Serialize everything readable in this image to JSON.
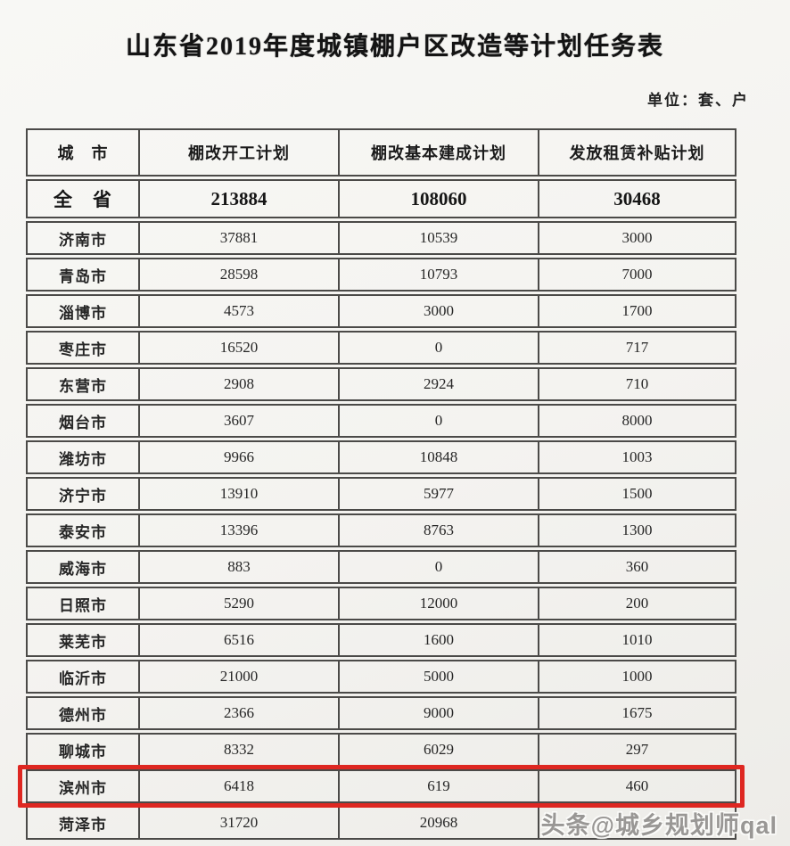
{
  "page": {
    "title": "山东省2019年度城镇棚户区改造等计划任务表",
    "unit_note": "单位：套、户",
    "watermark": "头条@城乡规划师qal",
    "highlight_color": "#de2721",
    "paper_color": "#f4f3f0",
    "ink_color": "#1f1f1f"
  },
  "table": {
    "columns": [
      "城　市",
      "棚改开工计划",
      "棚改基本建成计划",
      "发放租赁补贴计划"
    ],
    "rows": [
      {
        "city": "全　省",
        "start": "213884",
        "built": "108060",
        "subsidy": "30468",
        "is_summary": true,
        "highlighted": false
      },
      {
        "city": "济南市",
        "start": "37881",
        "built": "10539",
        "subsidy": "3000",
        "is_summary": false,
        "highlighted": false
      },
      {
        "city": "青岛市",
        "start": "28598",
        "built": "10793",
        "subsidy": "7000",
        "is_summary": false,
        "highlighted": false
      },
      {
        "city": "淄博市",
        "start": "4573",
        "built": "3000",
        "subsidy": "1700",
        "is_summary": false,
        "highlighted": false
      },
      {
        "city": "枣庄市",
        "start": "16520",
        "built": "0",
        "subsidy": "717",
        "is_summary": false,
        "highlighted": false
      },
      {
        "city": "东营市",
        "start": "2908",
        "built": "2924",
        "subsidy": "710",
        "is_summary": false,
        "highlighted": false
      },
      {
        "city": "烟台市",
        "start": "3607",
        "built": "0",
        "subsidy": "8000",
        "is_summary": false,
        "highlighted": false
      },
      {
        "city": "潍坊市",
        "start": "9966",
        "built": "10848",
        "subsidy": "1003",
        "is_summary": false,
        "highlighted": false
      },
      {
        "city": "济宁市",
        "start": "13910",
        "built": "5977",
        "subsidy": "1500",
        "is_summary": false,
        "highlighted": false
      },
      {
        "city": "泰安市",
        "start": "13396",
        "built": "8763",
        "subsidy": "1300",
        "is_summary": false,
        "highlighted": false
      },
      {
        "city": "威海市",
        "start": "883",
        "built": "0",
        "subsidy": "360",
        "is_summary": false,
        "highlighted": false
      },
      {
        "city": "日照市",
        "start": "5290",
        "built": "12000",
        "subsidy": "200",
        "is_summary": false,
        "highlighted": false
      },
      {
        "city": "莱芜市",
        "start": "6516",
        "built": "1600",
        "subsidy": "1010",
        "is_summary": false,
        "highlighted": false
      },
      {
        "city": "临沂市",
        "start": "21000",
        "built": "5000",
        "subsidy": "1000",
        "is_summary": false,
        "highlighted": false
      },
      {
        "city": "德州市",
        "start": "2366",
        "built": "9000",
        "subsidy": "1675",
        "is_summary": false,
        "highlighted": false
      },
      {
        "city": "聊城市",
        "start": "8332",
        "built": "6029",
        "subsidy": "297",
        "is_summary": false,
        "highlighted": false
      },
      {
        "city": "滨州市",
        "start": "6418",
        "built": "619",
        "subsidy": "460",
        "is_summary": false,
        "highlighted": true
      },
      {
        "city": "菏泽市",
        "start": "31720",
        "built": "20968",
        "subsidy": "",
        "is_summary": false,
        "highlighted": false,
        "subsidy_obscured_by_watermark": true
      }
    ]
  }
}
